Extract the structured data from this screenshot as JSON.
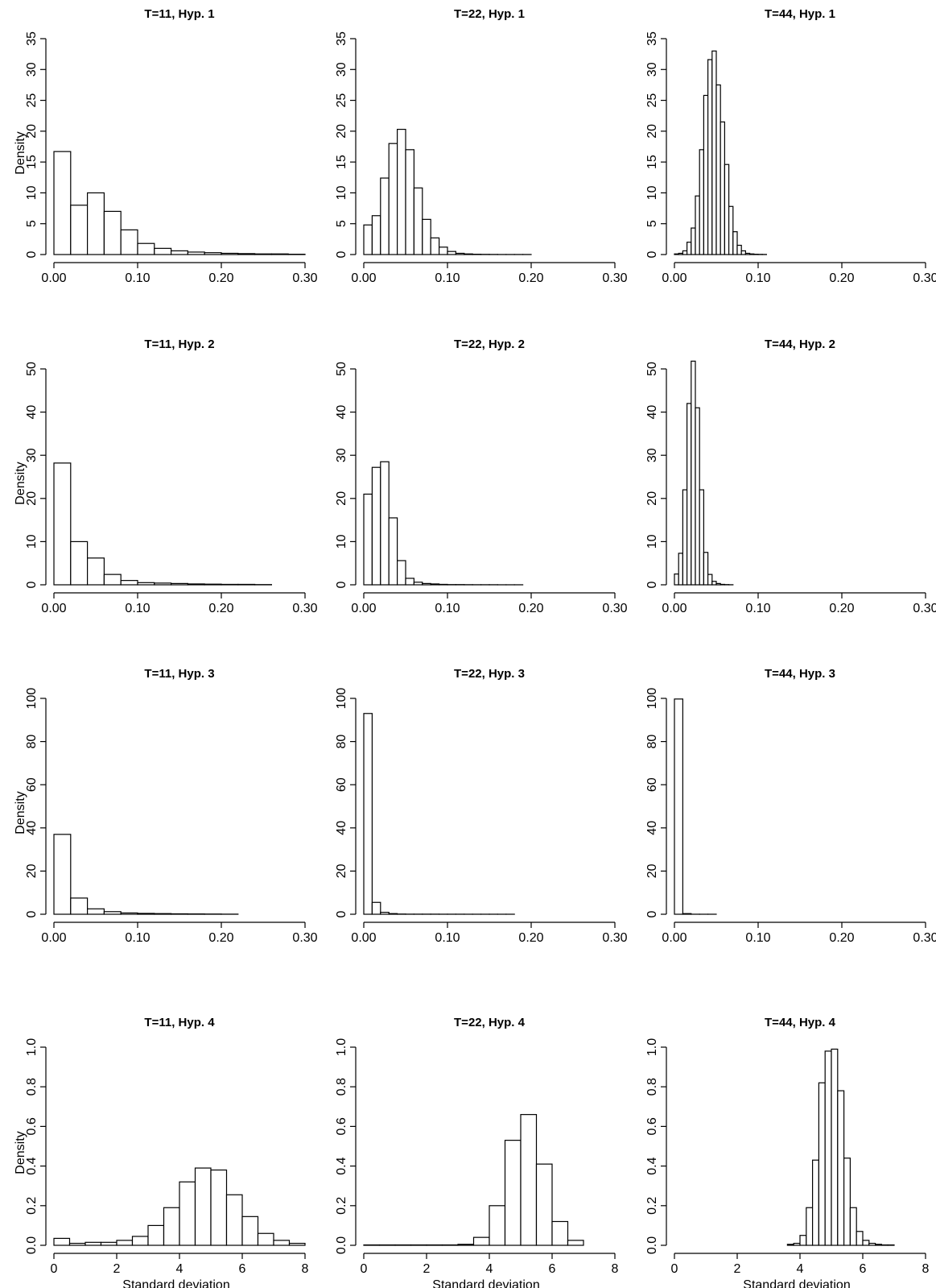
{
  "chart_data": [
    {
      "type": "bar",
      "title": "T=11, Hyp. 1",
      "xlabel": "",
      "ylabel": "Density",
      "xlim": [
        0,
        0.3
      ],
      "ylim": [
        0,
        35
      ],
      "xticks": [
        0,
        0.1,
        0.2,
        0.3
      ],
      "xtick_labels": [
        "0.00",
        "0.10",
        "0.20",
        "0.30"
      ],
      "yticks": [
        0,
        5,
        10,
        15,
        20,
        25,
        30,
        35
      ],
      "ytick_labels": [
        "0",
        "5",
        "10",
        "15",
        "20",
        "25",
        "30",
        "35"
      ],
      "bin_start": 0,
      "bin_width": 0.02,
      "values": [
        16.7,
        8,
        10,
        7,
        4,
        1.8,
        1,
        0.6,
        0.4,
        0.3,
        0.2,
        0.15,
        0.1,
        0.1,
        0.05
      ]
    },
    {
      "type": "bar",
      "title": "T=22, Hyp. 1",
      "xlabel": "",
      "ylabel": "",
      "xlim": [
        0,
        0.3
      ],
      "ylim": [
        0,
        35
      ],
      "xticks": [
        0,
        0.1,
        0.2,
        0.3
      ],
      "xtick_labels": [
        "0.00",
        "0.10",
        "0.20",
        "0.30"
      ],
      "yticks": [
        0,
        5,
        10,
        15,
        20,
        25,
        30,
        35
      ],
      "ytick_labels": [
        "0",
        "5",
        "10",
        "15",
        "20",
        "25",
        "30",
        "35"
      ],
      "bin_start": 0,
      "bin_width": 0.01,
      "values": [
        4.8,
        6.3,
        12.4,
        18,
        20.3,
        17,
        10.8,
        5.7,
        2.7,
        1.2,
        0.5,
        0.2,
        0.1,
        0.05,
        0.03,
        0.02,
        0.01,
        0.01,
        0.01,
        0.01
      ]
    },
    {
      "type": "bar",
      "title": "T=44, Hyp. 1",
      "xlabel": "",
      "ylabel": "",
      "xlim": [
        0,
        0.3
      ],
      "ylim": [
        0,
        35
      ],
      "xticks": [
        0,
        0.1,
        0.2,
        0.3
      ],
      "xtick_labels": [
        "0.00",
        "0.10",
        "0.20",
        "0.30"
      ],
      "yticks": [
        0,
        5,
        10,
        15,
        20,
        25,
        30,
        35
      ],
      "ytick_labels": [
        "0",
        "5",
        "10",
        "15",
        "20",
        "25",
        "30",
        "35"
      ],
      "bin_start": 0,
      "bin_width": 0.005,
      "values": [
        0.1,
        0.2,
        0.6,
        2,
        4.3,
        9.5,
        17,
        25.8,
        31.6,
        33,
        27.5,
        21.5,
        14.6,
        7.8,
        3.7,
        1.5,
        0.6,
        0.2,
        0.1,
        0.05,
        0.03,
        0.02
      ]
    },
    {
      "type": "bar",
      "title": "T=11, Hyp. 2",
      "xlabel": "",
      "ylabel": "Density",
      "xlim": [
        0,
        0.3
      ],
      "ylim": [
        0,
        50
      ],
      "xticks": [
        0,
        0.1,
        0.2,
        0.3
      ],
      "xtick_labels": [
        "0.00",
        "0.10",
        "0.20",
        "0.30"
      ],
      "yticks": [
        0,
        10,
        20,
        30,
        40,
        50
      ],
      "ytick_labels": [
        "0",
        "10",
        "20",
        "30",
        "40",
        "50"
      ],
      "bin_start": 0,
      "bin_width": 0.02,
      "values": [
        28.2,
        10,
        6.2,
        2.4,
        1,
        0.5,
        0.4,
        0.3,
        0.2,
        0.15,
        0.1,
        0.1,
        0.05
      ]
    },
    {
      "type": "bar",
      "title": "T=22, Hyp. 2",
      "xlabel": "",
      "ylabel": "",
      "xlim": [
        0,
        0.3
      ],
      "ylim": [
        0,
        50
      ],
      "xticks": [
        0,
        0.1,
        0.2,
        0.3
      ],
      "xtick_labels": [
        "0.00",
        "0.10",
        "0.20",
        "0.30"
      ],
      "yticks": [
        0,
        10,
        20,
        30,
        40,
        50
      ],
      "ytick_labels": [
        "0",
        "10",
        "20",
        "30",
        "40",
        "50"
      ],
      "bin_start": 0,
      "bin_width": 0.01,
      "values": [
        21,
        27.2,
        28.5,
        15.5,
        5.6,
        1.5,
        0.6,
        0.3,
        0.2,
        0.1,
        0.05,
        0.05,
        0.03,
        0.02,
        0.02,
        0.02,
        0.01,
        0.01,
        0.01
      ]
    },
    {
      "type": "bar",
      "title": "T=44, Hyp. 2",
      "xlabel": "",
      "ylabel": "",
      "xlim": [
        0,
        0.3
      ],
      "ylim": [
        0,
        50
      ],
      "xticks": [
        0,
        0.1,
        0.2,
        0.3
      ],
      "xtick_labels": [
        "0.00",
        "0.10",
        "0.20",
        "0.30"
      ],
      "yticks": [
        0,
        10,
        20,
        30,
        40,
        50
      ],
      "ytick_labels": [
        "0",
        "10",
        "20",
        "30",
        "40",
        "50"
      ],
      "bin_start": 0,
      "bin_width": 0.005,
      "values": [
        2.5,
        7.3,
        22,
        42,
        51.8,
        41,
        22,
        7.5,
        2.4,
        0.8,
        0.3,
        0.1,
        0.05,
        0.02
      ]
    },
    {
      "type": "bar",
      "title": "T=11, Hyp. 3",
      "xlabel": "",
      "ylabel": "Density",
      "xlim": [
        0,
        0.3
      ],
      "ylim": [
        0,
        100
      ],
      "xticks": [
        0,
        0.1,
        0.2,
        0.3
      ],
      "xtick_labels": [
        "0.00",
        "0.10",
        "0.20",
        "0.30"
      ],
      "yticks": [
        0,
        20,
        40,
        60,
        80,
        100
      ],
      "ytick_labels": [
        "0",
        "20",
        "40",
        "60",
        "80",
        "100"
      ],
      "bin_start": 0,
      "bin_width": 0.02,
      "values": [
        37,
        7.5,
        2.5,
        1.2,
        0.6,
        0.4,
        0.3,
        0.2,
        0.15,
        0.1,
        0.05
      ]
    },
    {
      "type": "bar",
      "title": "T=22, Hyp. 3",
      "xlabel": "",
      "ylabel": "",
      "xlim": [
        0,
        0.3
      ],
      "ylim": [
        0,
        100
      ],
      "xticks": [
        0,
        0.1,
        0.2,
        0.3
      ],
      "xtick_labels": [
        "0.00",
        "0.10",
        "0.20",
        "0.30"
      ],
      "yticks": [
        0,
        20,
        40,
        60,
        80,
        100
      ],
      "ytick_labels": [
        "0",
        "20",
        "40",
        "60",
        "80",
        "100"
      ],
      "bin_start": 0,
      "bin_width": 0.01,
      "values": [
        93,
        5.5,
        0.9,
        0.3,
        0.1,
        0.05,
        0.05,
        0.05,
        0.05,
        0.03,
        0.03,
        0.03,
        0.02,
        0.02,
        0.02,
        0.02,
        0.01,
        0.01
      ]
    },
    {
      "type": "bar",
      "title": "T=44, Hyp. 3",
      "xlabel": "",
      "ylabel": "",
      "xlim": [
        0,
        0.3
      ],
      "ylim": [
        0,
        100
      ],
      "xticks": [
        0,
        0.1,
        0.2,
        0.3
      ],
      "xtick_labels": [
        "0.00",
        "0.10",
        "0.20",
        "0.30"
      ],
      "yticks": [
        0,
        20,
        40,
        60,
        80,
        100
      ],
      "ytick_labels": [
        "0",
        "20",
        "40",
        "60",
        "80",
        "100"
      ],
      "bin_start": 0,
      "bin_width": 0.01,
      "values": [
        99.7,
        0.3,
        0.02,
        0.01,
        0.01
      ]
    },
    {
      "type": "bar",
      "title": "T=11, Hyp. 4",
      "xlabel": "Standard deviation",
      "ylabel": "Density",
      "xlim": [
        0,
        8
      ],
      "ylim": [
        0,
        1
      ],
      "xticks": [
        0,
        2,
        4,
        6,
        8
      ],
      "xtick_labels": [
        "0",
        "2",
        "4",
        "6",
        "8"
      ],
      "yticks": [
        0,
        0.2,
        0.4,
        0.6,
        0.8,
        1
      ],
      "ytick_labels": [
        "0.0",
        "0.2",
        "0.4",
        "0.6",
        "0.8",
        "1.0"
      ],
      "bin_start": 0,
      "bin_width": 0.5,
      "values": [
        0.035,
        0.01,
        0.015,
        0.015,
        0.025,
        0.045,
        0.1,
        0.19,
        0.32,
        0.39,
        0.38,
        0.255,
        0.145,
        0.06,
        0.025,
        0.01
      ]
    },
    {
      "type": "bar",
      "title": "T=22, Hyp. 4",
      "xlabel": "Standard deviation",
      "ylabel": "",
      "xlim": [
        0,
        8
      ],
      "ylim": [
        0,
        1
      ],
      "xticks": [
        0,
        2,
        4,
        6,
        8
      ],
      "xtick_labels": [
        "0",
        "2",
        "4",
        "6",
        "8"
      ],
      "yticks": [
        0,
        0.2,
        0.4,
        0.6,
        0.8,
        1
      ],
      "ytick_labels": [
        "0.0",
        "0.2",
        "0.4",
        "0.6",
        "0.8",
        "1.0"
      ],
      "bin_start": 0,
      "bin_width": 0.5,
      "values": [
        0.002,
        0.002,
        0.002,
        0.002,
        0.002,
        0.002,
        0.005,
        0.04,
        0.2,
        0.53,
        0.66,
        0.41,
        0.12,
        0.025
      ]
    },
    {
      "type": "bar",
      "title": "T=44, Hyp. 4",
      "xlabel": "Standard deviation",
      "ylabel": "",
      "xlim": [
        0,
        8
      ],
      "ylim": [
        0,
        1
      ],
      "xticks": [
        0,
        2,
        4,
        6,
        8
      ],
      "xtick_labels": [
        "0",
        "2",
        "4",
        "6",
        "8"
      ],
      "yticks": [
        0,
        0.2,
        0.4,
        0.6,
        0.8,
        1
      ],
      "ytick_labels": [
        "0.0",
        "0.2",
        "0.4",
        "0.6",
        "0.8",
        "1.0"
      ],
      "bin_start": 3.6,
      "bin_width": 0.2,
      "values": [
        0.005,
        0.01,
        0.05,
        0.19,
        0.43,
        0.82,
        0.98,
        0.99,
        0.78,
        0.44,
        0.19,
        0.07,
        0.025,
        0.01,
        0.005,
        0.002,
        0.002
      ]
    }
  ]
}
